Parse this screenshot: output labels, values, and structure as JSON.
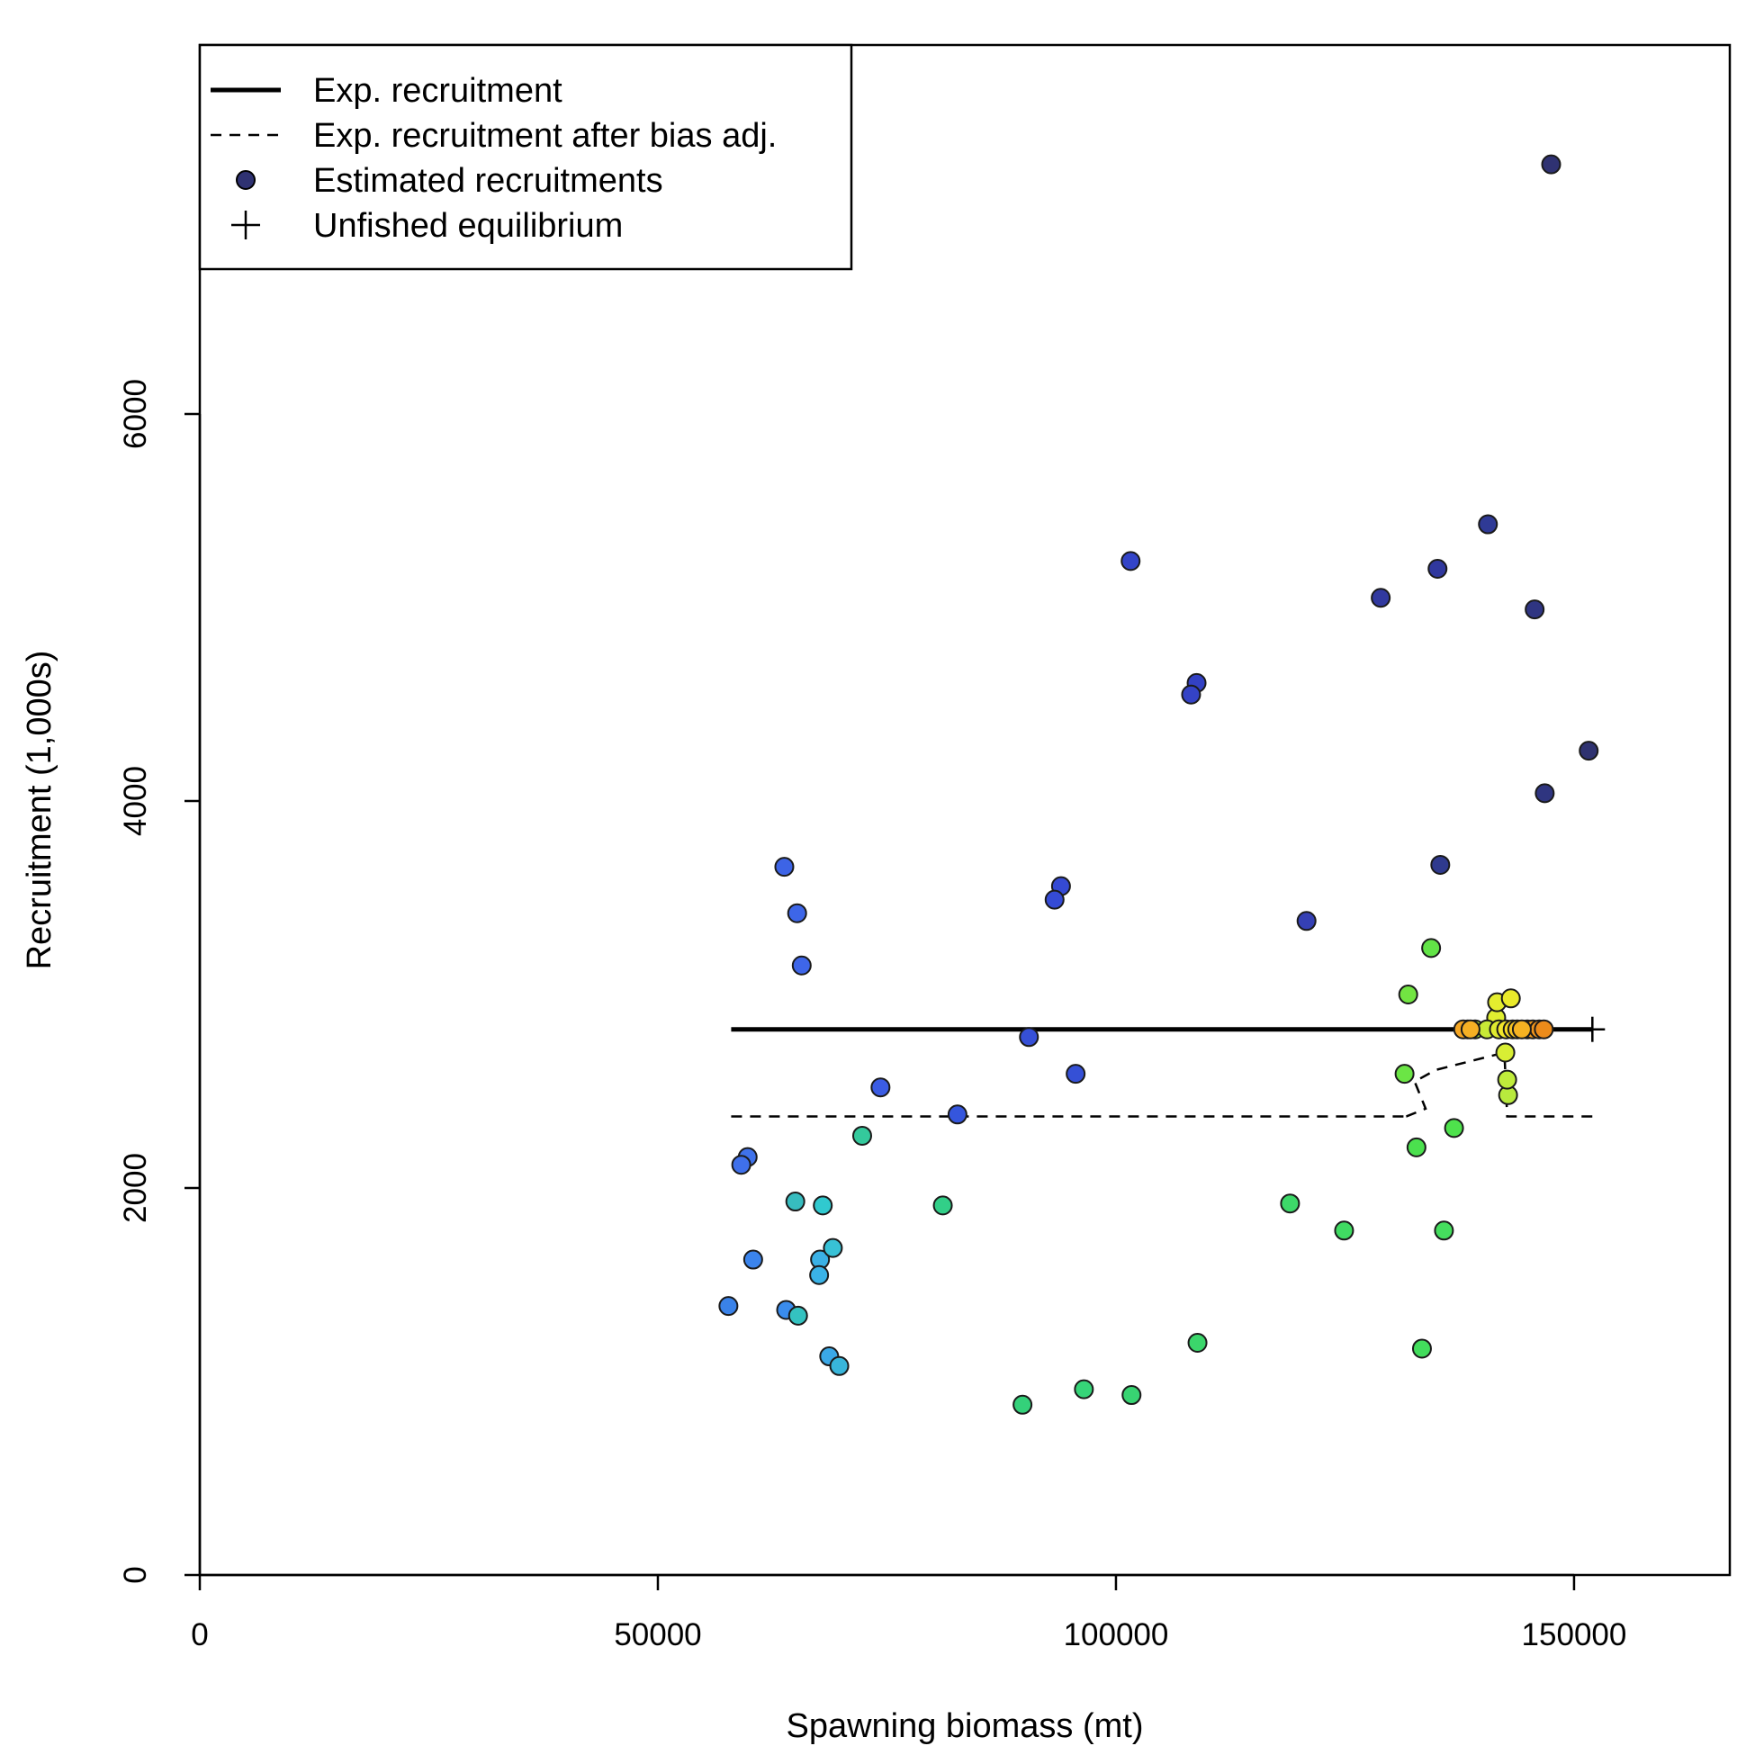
{
  "chart_data": {
    "type": "scatter",
    "xlabel": "Spawning biomass (mt)",
    "ylabel": "Recruitment (1,000s)",
    "xlim": [
      0,
      167000
    ],
    "ylim": [
      0,
      7900
    ],
    "x_ticks": [
      0,
      50000,
      100000,
      150000
    ],
    "x_tick_labels": [
      "0",
      "50000",
      "100000",
      "150000"
    ],
    "y_ticks": [
      0,
      2000,
      4000,
      6000
    ],
    "y_tick_labels": [
      "0",
      "2000",
      "4000",
      "6000"
    ],
    "grid": false,
    "legend": {
      "placement": "top-left",
      "entries": [
        {
          "label": "Exp. recruitment",
          "symbol": "solid-line"
        },
        {
          "label": "Exp. recruitment after bias adj.",
          "symbol": "dashed-line"
        },
        {
          "label": "Estimated recruitments",
          "symbol": "filled-circle",
          "color": "#2f3272"
        },
        {
          "label": "Unfished equilibrium",
          "symbol": "plus"
        }
      ]
    },
    "expected_recruitment": {
      "x": [
        58000,
        152000
      ],
      "y": [
        2820,
        2820
      ],
      "color": "#000000"
    },
    "expected_recruitment_bias_adj": {
      "x": [
        58000,
        132000,
        131700,
        133800,
        132600,
        134900,
        142400,
        142700,
        152000
      ],
      "y": [
        2370,
        2370,
        2370,
        2410,
        2550,
        2610,
        2700,
        2370,
        2370
      ],
      "color": "#000000"
    },
    "unfished_equilibrium": {
      "x": 152000,
      "y": 2820
    },
    "points": [
      {
        "x": 147500,
        "y": 7290,
        "color": "#2f3272"
      },
      {
        "x": 140600,
        "y": 5430,
        "color": "#2f3a96"
      },
      {
        "x": 135100,
        "y": 5200,
        "color": "#30389e"
      },
      {
        "x": 128900,
        "y": 5050,
        "color": "#31399f"
      },
      {
        "x": 145700,
        "y": 4990,
        "color": "#2f3582"
      },
      {
        "x": 151600,
        "y": 4260,
        "color": "#2f3270"
      },
      {
        "x": 146800,
        "y": 4040,
        "color": "#2f3580"
      },
      {
        "x": 135400,
        "y": 3670,
        "color": "#2f3a8e"
      },
      {
        "x": 120800,
        "y": 3380,
        "color": "#3540b4"
      },
      {
        "x": 101600,
        "y": 5240,
        "color": "#3344c8"
      },
      {
        "x": 108800,
        "y": 4610,
        "color": "#3341c4"
      },
      {
        "x": 108200,
        "y": 4550,
        "color": "#3443c6"
      },
      {
        "x": 94000,
        "y": 3560,
        "color": "#354ad3"
      },
      {
        "x": 93300,
        "y": 3490,
        "color": "#354bd6"
      },
      {
        "x": 90500,
        "y": 2780,
        "color": "#3650d7"
      },
      {
        "x": 95600,
        "y": 2590,
        "color": "#3550d6"
      },
      {
        "x": 82700,
        "y": 2380,
        "color": "#3556dd"
      },
      {
        "x": 74300,
        "y": 2520,
        "color": "#3b5ce3"
      },
      {
        "x": 63800,
        "y": 3660,
        "color": "#3d64e6"
      },
      {
        "x": 65200,
        "y": 3420,
        "color": "#3d66e8"
      },
      {
        "x": 65700,
        "y": 3150,
        "color": "#3e66e9"
      },
      {
        "x": 59800,
        "y": 2160,
        "color": "#3f72ea"
      },
      {
        "x": 59100,
        "y": 2120,
        "color": "#3f70ea"
      },
      {
        "x": 60400,
        "y": 1630,
        "color": "#3b84ec"
      },
      {
        "x": 57700,
        "y": 1390,
        "color": "#3a82e8"
      },
      {
        "x": 64000,
        "y": 1370,
        "color": "#3a8ced"
      },
      {
        "x": 65000,
        "y": 1930,
        "color": "#37bcbf"
      },
      {
        "x": 65300,
        "y": 1340,
        "color": "#34c2c0"
      },
      {
        "x": 68000,
        "y": 1910,
        "color": "#30c9cf"
      },
      {
        "x": 67700,
        "y": 1630,
        "color": "#3bb1e5"
      },
      {
        "x": 67600,
        "y": 1550,
        "color": "#3ab2e6"
      },
      {
        "x": 69100,
        "y": 1690,
        "color": "#38c1d6"
      },
      {
        "x": 68700,
        "y": 1130,
        "color": "#3aa8e7"
      },
      {
        "x": 69800,
        "y": 1080,
        "color": "#38b5da"
      },
      {
        "x": 72300,
        "y": 2270,
        "color": "#34c99c"
      },
      {
        "x": 81100,
        "y": 1910,
        "color": "#32cf88"
      },
      {
        "x": 89800,
        "y": 880,
        "color": "#34d17a"
      },
      {
        "x": 96500,
        "y": 960,
        "color": "#36d478"
      },
      {
        "x": 101700,
        "y": 930,
        "color": "#38d472"
      },
      {
        "x": 108900,
        "y": 1200,
        "color": "#3bd66b"
      },
      {
        "x": 119000,
        "y": 1920,
        "color": "#3dd869"
      },
      {
        "x": 124900,
        "y": 1780,
        "color": "#40db62"
      },
      {
        "x": 135800,
        "y": 1780,
        "color": "#45de5e"
      },
      {
        "x": 133400,
        "y": 1170,
        "color": "#42dd5c"
      },
      {
        "x": 132800,
        "y": 2210,
        "color": "#4be04e"
      },
      {
        "x": 136900,
        "y": 2310,
        "color": "#4ee24c"
      },
      {
        "x": 131500,
        "y": 2590,
        "color": "#6be545"
      },
      {
        "x": 131900,
        "y": 3000,
        "color": "#72e542"
      },
      {
        "x": 134400,
        "y": 3240,
        "color": "#62e447"
      },
      {
        "x": 142800,
        "y": 2480,
        "color": "#b8ea3d"
      },
      {
        "x": 142700,
        "y": 2560,
        "color": "#c0ec3b"
      },
      {
        "x": 142500,
        "y": 2700,
        "color": "#d8ee34"
      },
      {
        "x": 141500,
        "y": 2880,
        "color": "#e0ef30"
      },
      {
        "x": 141600,
        "y": 2960,
        "color": "#e4ed2f"
      },
      {
        "x": 143100,
        "y": 2980,
        "color": "#eaea2a"
      },
      {
        "x": 138400,
        "y": 2820,
        "color": "#8ee240"
      },
      {
        "x": 139200,
        "y": 2820,
        "color": "#a6e63c"
      },
      {
        "x": 140500,
        "y": 2820,
        "color": "#c8ea36"
      },
      {
        "x": 141800,
        "y": 2820,
        "color": "#dfeb2f"
      },
      {
        "x": 142600,
        "y": 2820,
        "color": "#f1e62a"
      },
      {
        "x": 143300,
        "y": 2820,
        "color": "#f7da24"
      },
      {
        "x": 137900,
        "y": 2820,
        "color": "#f5a623"
      },
      {
        "x": 138700,
        "y": 2820,
        "color": "#f6b024"
      },
      {
        "x": 144900,
        "y": 2820,
        "color": "#f5a21f"
      },
      {
        "x": 145500,
        "y": 2820,
        "color": "#f39b1d"
      },
      {
        "x": 146200,
        "y": 2820,
        "color": "#ef931b"
      },
      {
        "x": 146700,
        "y": 2820,
        "color": "#ec8b1a"
      },
      {
        "x": 143800,
        "y": 2820,
        "color": "#f6c323"
      },
      {
        "x": 144300,
        "y": 2820,
        "color": "#f5b222"
      }
    ]
  }
}
